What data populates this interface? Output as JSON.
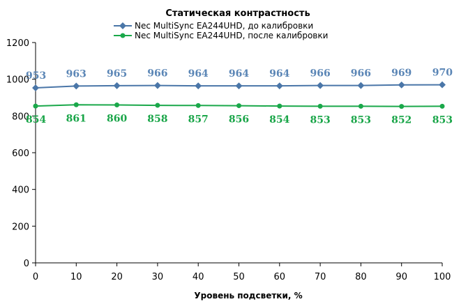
{
  "chart_data": {
    "type": "line",
    "title": "Статическая контрастность",
    "xlabel": "Уровень подсветки, %",
    "ylabel": "",
    "x": [
      0,
      10,
      20,
      30,
      40,
      50,
      60,
      70,
      80,
      90,
      100
    ],
    "xlim": [
      0,
      100
    ],
    "ylim": [
      0,
      1200
    ],
    "yticks": [
      0,
      200,
      400,
      600,
      800,
      1000,
      1200
    ],
    "xticks": [
      0,
      10,
      20,
      30,
      40,
      50,
      60,
      70,
      80,
      90,
      100
    ],
    "grid": false,
    "legend_position": "top",
    "series": [
      {
        "name": "Nec MultiSync EA244UHD,  до калибровки",
        "values": [
          953,
          963,
          965,
          966,
          964,
          964,
          964,
          966,
          966,
          969,
          970
        ],
        "color": "#4a76a8",
        "label_color": "#5b86b6",
        "marker": "diamond",
        "label_position": "above"
      },
      {
        "name": "Nec MultiSync EA244UHD,  после калибровки",
        "values": [
          854,
          861,
          860,
          858,
          857,
          856,
          854,
          853,
          853,
          852,
          853
        ],
        "color": "#1aa84a",
        "label_color": "#19a548",
        "marker": "circle",
        "label_position": "below"
      }
    ]
  }
}
